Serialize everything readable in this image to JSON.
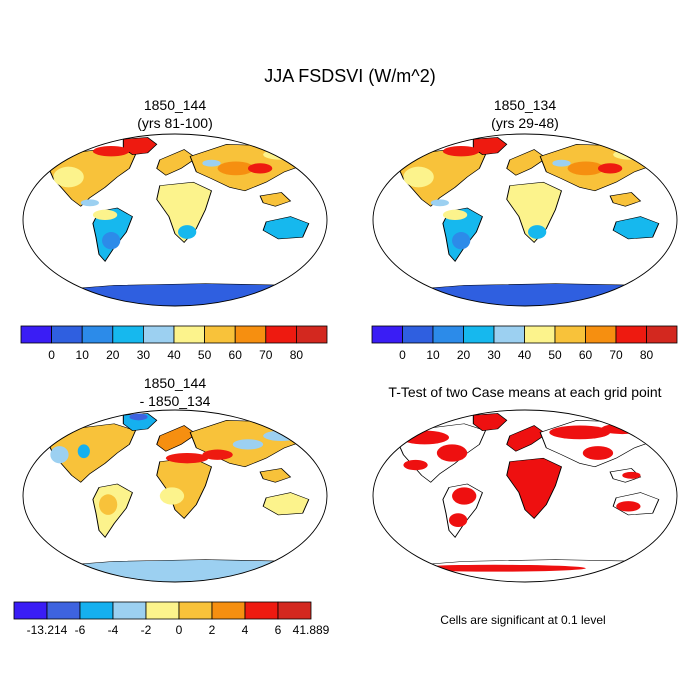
{
  "title": "JJA FSDSVI (W/m^2)",
  "panels": [
    {
      "id": "case1",
      "title_line1": "1850_144",
      "title_line2": "(yrs 81-100)"
    },
    {
      "id": "case2",
      "title_line1": "1850_134",
      "title_line2": "(yrs 29-48)"
    },
    {
      "id": "diff",
      "title_line1": "1850_144",
      "title_line2": "- 1850_134"
    },
    {
      "id": "ttest",
      "title_line1": "T-Test of two Case means at each grid point",
      "title_line2": ""
    }
  ],
  "colorbars": {
    "case": {
      "colors": [
        "#3a1df5",
        "#2f5fe0",
        "#2c8be9",
        "#16b8ee",
        "#9cd0f1",
        "#fcf38c",
        "#f8c23a",
        "#f68f10",
        "#ee1a10",
        "#d3281f"
      ],
      "labels": [
        "0",
        "10",
        "20",
        "30",
        "40",
        "50",
        "60",
        "70",
        "80"
      ]
    },
    "diff": {
      "colors": [
        "#3a1df5",
        "#3e63df",
        "#15b0ef",
        "#9cd0f1",
        "#fcf38c",
        "#f8c23a",
        "#f68f10",
        "#ee1a10",
        "#d3281f"
      ],
      "labels": [
        "-13.214",
        "-6",
        "-4",
        "-2",
        "0",
        "2",
        "4",
        "6",
        "41.889"
      ]
    }
  },
  "significance_note": "Cells are significant at 0.1 level",
  "colors": {
    "background": "#ffffff",
    "land_outline": "#000000",
    "significant": "#ee1010"
  }
}
